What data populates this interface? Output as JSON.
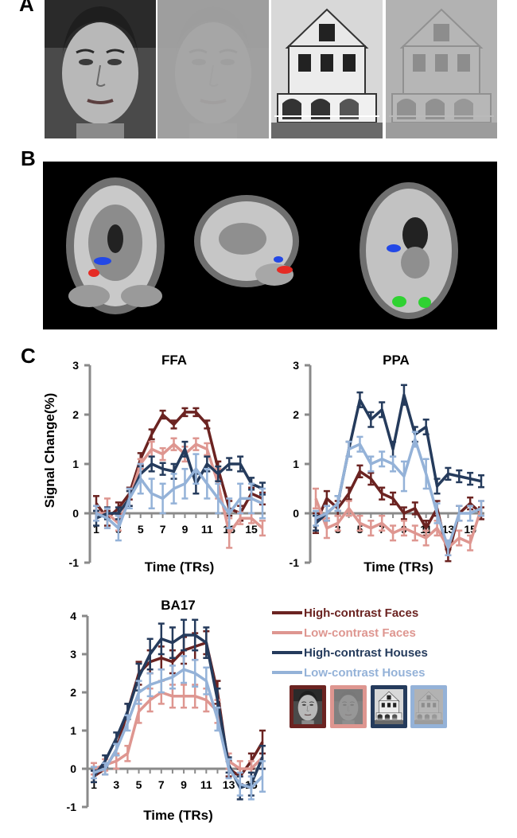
{
  "panels": {
    "a": "A",
    "b": "B",
    "c": "C"
  },
  "colors": {
    "hc_faces": "#6b2321",
    "lc_faces": "#de9690",
    "hc_houses": "#253b5c",
    "lc_houses": "#94b2d8",
    "roi_blue": "#2348e6",
    "roi_red": "#e52b24",
    "roi_green": "#2fd232"
  },
  "stimuli": [
    "face-high-contrast",
    "face-low-contrast",
    "house-high-contrast",
    "house-low-contrast"
  ],
  "ylabel": "Signal Change(%)",
  "chart_data": [
    {
      "type": "line",
      "title": "FFA",
      "xlabel": "Time (TRs)",
      "ylabel": "Signal Change(%)",
      "xlim": [
        1,
        16
      ],
      "ylim": [
        -1,
        3
      ],
      "xticks": [
        "1",
        "3",
        "5",
        "7",
        "9",
        "11",
        "13",
        "15"
      ],
      "yticks": [
        "-1",
        "0",
        "1",
        "2",
        "3"
      ],
      "x": [
        1,
        2,
        3,
        4,
        5,
        6,
        7,
        8,
        9,
        10,
        11,
        12,
        13,
        14,
        15,
        16
      ],
      "series": [
        {
          "name": "High-contrast Faces",
          "values": [
            0.2,
            -0.1,
            0.1,
            0.4,
            1.1,
            1.6,
            2.0,
            1.8,
            2.05,
            2.05,
            1.8,
            0.9,
            0.1,
            0.0,
            0.4,
            0.3
          ],
          "err": [
            0.15,
            0.15,
            0.12,
            0.12,
            0.12,
            0.1,
            0.08,
            0.08,
            0.08,
            0.08,
            0.08,
            0.15,
            0.15,
            0.15,
            0.12,
            0.12
          ]
        },
        {
          "name": "Low-contrast Faces",
          "values": [
            0.0,
            0.0,
            -0.2,
            0.3,
            1.0,
            1.3,
            1.2,
            1.4,
            1.2,
            1.4,
            1.3,
            0.6,
            -0.4,
            -0.1,
            -0.1,
            -0.3
          ],
          "err": [
            0.15,
            0.3,
            0.15,
            0.15,
            0.1,
            0.15,
            0.12,
            0.12,
            0.15,
            0.12,
            0.12,
            0.3,
            0.3,
            0.12,
            0.1,
            0.15
          ]
        },
        {
          "name": "High-contrast Houses",
          "values": [
            -0.1,
            0.0,
            0.0,
            0.3,
            0.8,
            1.0,
            0.9,
            0.85,
            1.3,
            0.6,
            1.0,
            0.8,
            1.0,
            1.0,
            0.6,
            0.5
          ],
          "err": [
            0.15,
            0.12,
            0.12,
            0.15,
            0.15,
            0.15,
            0.12,
            0.15,
            0.15,
            0.2,
            0.15,
            0.15,
            0.12,
            0.15,
            0.12,
            0.12
          ]
        },
        {
          "name": "Low-contrast Houses",
          "values": [
            0.0,
            -0.1,
            -0.3,
            0.3,
            0.7,
            0.4,
            0.3,
            0.5,
            0.6,
            0.9,
            0.6,
            0.3,
            0.0,
            0.3,
            0.3,
            0.2
          ],
          "err": [
            0.15,
            0.2,
            0.25,
            0.2,
            0.3,
            0.3,
            0.3,
            0.3,
            0.3,
            0.3,
            0.3,
            0.3,
            0.3,
            0.3,
            0.3,
            0.3
          ]
        }
      ]
    },
    {
      "type": "line",
      "title": "PPA",
      "xlabel": "Time (TRs)",
      "ylabel": "",
      "xlim": [
        1,
        16
      ],
      "ylim": [
        -1,
        3
      ],
      "xticks": [
        "1",
        "3",
        "5",
        "7",
        "9",
        "11",
        "13",
        "15"
      ],
      "yticks": [
        "-1",
        "0",
        "1",
        "2",
        "3"
      ],
      "x": [
        1,
        2,
        3,
        4,
        5,
        6,
        7,
        8,
        9,
        10,
        11,
        12,
        13,
        14,
        15,
        16
      ],
      "series": [
        {
          "name": "High-contrast Faces",
          "values": [
            -0.2,
            0.3,
            0.1,
            0.4,
            0.85,
            0.7,
            0.4,
            0.3,
            0.0,
            0.1,
            -0.3,
            0.1,
            -0.85,
            0.0,
            0.2,
            0.0
          ],
          "err": [
            0.2,
            0.15,
            0.15,
            0.12,
            0.12,
            0.12,
            0.12,
            0.12,
            0.12,
            0.12,
            0.15,
            0.15,
            0.12,
            0.15,
            0.12,
            0.12
          ]
        },
        {
          "name": "Low-contrast Faces",
          "values": [
            0.3,
            -0.3,
            -0.2,
            0.1,
            -0.2,
            -0.3,
            -0.2,
            -0.4,
            -0.3,
            -0.4,
            -0.5,
            -0.3,
            -0.7,
            -0.5,
            -0.6,
            0.1
          ],
          "err": [
            0.2,
            0.2,
            0.15,
            0.15,
            0.15,
            0.15,
            0.15,
            0.15,
            0.15,
            0.15,
            0.15,
            0.15,
            0.15,
            0.15,
            0.15,
            0.15
          ]
        },
        {
          "name": "High-contrast Houses",
          "values": [
            -0.2,
            0.0,
            0.2,
            1.3,
            2.3,
            1.9,
            2.1,
            1.3,
            2.4,
            1.6,
            1.75,
            0.55,
            0.8,
            0.75,
            0.7,
            0.65
          ],
          "err": [
            0.15,
            0.15,
            0.15,
            0.15,
            0.15,
            0.15,
            0.15,
            0.15,
            0.2,
            0.15,
            0.15,
            0.15,
            0.12,
            0.12,
            0.12,
            0.12
          ]
        },
        {
          "name": "Low-contrast Houses",
          "values": [
            -0.1,
            0.0,
            0.2,
            1.3,
            1.4,
            1.0,
            1.1,
            1.0,
            0.75,
            1.5,
            0.8,
            0.0,
            -0.7,
            0.0,
            0.0,
            0.1
          ],
          "err": [
            0.15,
            0.15,
            0.15,
            0.15,
            0.15,
            0.15,
            0.15,
            0.15,
            0.3,
            0.15,
            0.3,
            0.2,
            0.15,
            0.15,
            0.15,
            0.15
          ]
        }
      ]
    },
    {
      "type": "line",
      "title": "BA17",
      "xlabel": "Time (TRs)",
      "ylabel": "",
      "xlim": [
        1,
        16
      ],
      "ylim": [
        -1,
        4
      ],
      "xticks": [
        "1",
        "3",
        "5",
        "7",
        "9",
        "11",
        "13",
        "15"
      ],
      "yticks": [
        "-1",
        "0",
        "1",
        "2",
        "3",
        "4"
      ],
      "x": [
        1,
        2,
        3,
        4,
        5,
        6,
        7,
        8,
        9,
        10,
        11,
        12,
        13,
        14,
        15,
        16
      ],
      "series": [
        {
          "name": "High-contrast Faces",
          "values": [
            -0.2,
            0.0,
            0.5,
            1.5,
            2.5,
            2.8,
            2.9,
            2.8,
            3.1,
            3.2,
            3.3,
            2.0,
            0.0,
            -0.2,
            0.2,
            0.7
          ],
          "err": [
            0.15,
            0.15,
            0.15,
            0.2,
            0.3,
            0.3,
            0.3,
            0.3,
            0.35,
            0.35,
            0.3,
            0.3,
            0.2,
            0.2,
            0.2,
            0.3
          ]
        },
        {
          "name": "Low-contrast Faces",
          "values": [
            0.0,
            0.1,
            0.2,
            0.4,
            1.5,
            1.8,
            2.0,
            1.9,
            1.9,
            1.9,
            1.8,
            1.5,
            0.2,
            0.0,
            0.0,
            0.3
          ],
          "err": [
            0.15,
            0.15,
            0.2,
            0.2,
            0.3,
            0.3,
            0.3,
            0.3,
            0.3,
            0.3,
            0.3,
            0.3,
            0.2,
            0.2,
            0.2,
            0.3
          ]
        },
        {
          "name": "High-contrast Houses",
          "values": [
            -0.2,
            0.2,
            0.8,
            1.5,
            2.4,
            3.0,
            3.4,
            3.3,
            3.5,
            3.5,
            3.3,
            1.8,
            0.1,
            -0.5,
            -0.4,
            0.3
          ],
          "err": [
            0.15,
            0.15,
            0.15,
            0.2,
            0.35,
            0.4,
            0.4,
            0.4,
            0.4,
            0.4,
            0.4,
            0.3,
            0.2,
            0.3,
            0.3,
            0.3
          ]
        },
        {
          "name": "Low-contrast Houses",
          "values": [
            -0.1,
            0.0,
            0.5,
            1.2,
            2.0,
            2.2,
            2.3,
            2.4,
            2.6,
            2.5,
            2.3,
            1.3,
            0.0,
            -0.4,
            -0.5,
            -0.2
          ],
          "err": [
            0.15,
            0.15,
            0.15,
            0.2,
            0.3,
            0.3,
            0.3,
            0.3,
            0.35,
            0.35,
            0.35,
            0.3,
            0.25,
            0.3,
            0.3,
            0.4
          ]
        }
      ]
    }
  ]
}
